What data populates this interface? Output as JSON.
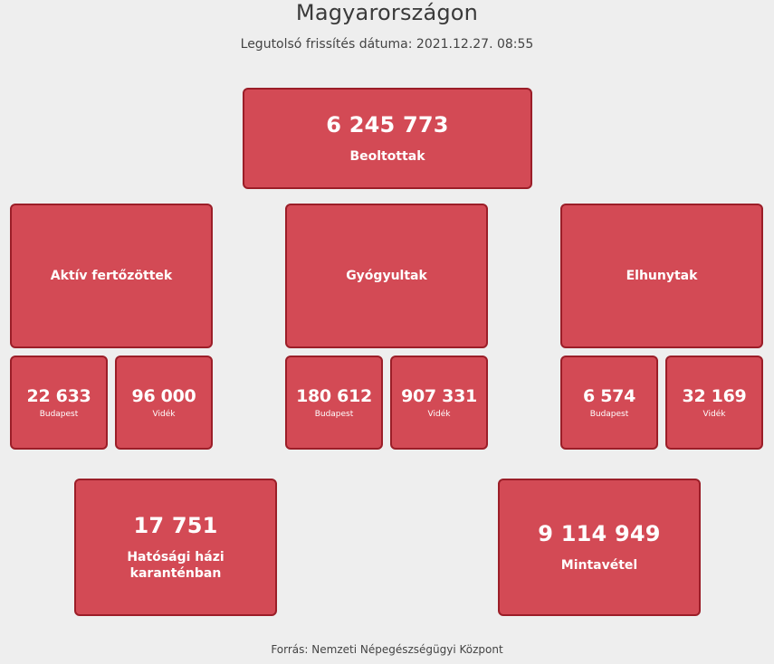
{
  "page": {
    "title": "Magyarországon",
    "last_update": "Legutolsó frissítés dátuma: 2021.12.27. 08:55",
    "source": "Forrás: Nemzeti Népegészségügyi Központ"
  },
  "colors": {
    "card_fill": "#d34a55",
    "card_border": "#9b1e28",
    "background": "#eeeeee"
  },
  "vaccinated": {
    "value": "6 245 773",
    "label": "Beoltottak"
  },
  "active": {
    "label": "Aktív fertőzöttek",
    "budapest": {
      "value": "22 633",
      "label": "Budapest"
    },
    "videk": {
      "value": "96 000",
      "label": "Vidék"
    }
  },
  "recovered": {
    "label": "Gyógyultak",
    "budapest": {
      "value": "180 612",
      "label": "Budapest"
    },
    "videk": {
      "value": "907 331",
      "label": "Vidék"
    }
  },
  "deceased": {
    "label": "Elhunytak",
    "budapest": {
      "value": "6 574",
      "label": "Budapest"
    },
    "videk": {
      "value": "32 169",
      "label": "Vidék"
    }
  },
  "quarantine": {
    "value": "17 751",
    "label_line1": "Hatósági házi",
    "label_line2": "karanténban"
  },
  "samples": {
    "value": "9 114 949",
    "label": "Mintavétel"
  }
}
